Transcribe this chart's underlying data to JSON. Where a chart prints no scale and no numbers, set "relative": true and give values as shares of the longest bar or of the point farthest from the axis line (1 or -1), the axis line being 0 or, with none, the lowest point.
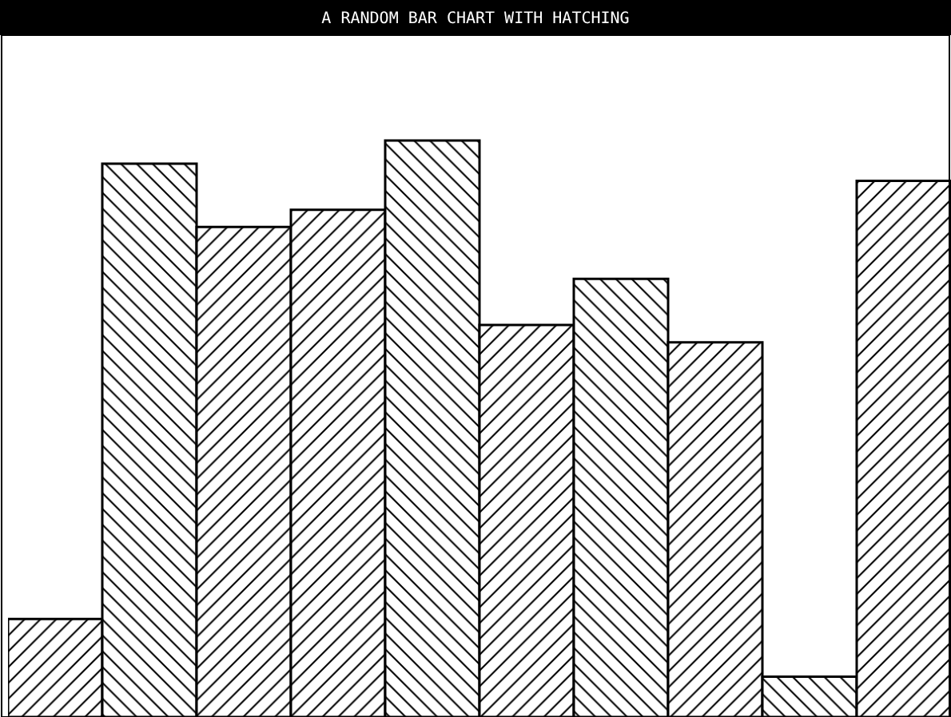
{
  "chart_data": {
    "type": "bar",
    "title": "A RANDOM BAR CHART WITH HATCHING",
    "relative": true,
    "categories": [
      null,
      null,
      null,
      null,
      null,
      null,
      null,
      null,
      null,
      null
    ],
    "series": [
      {
        "color": "#000000",
        "values": [
          0.17,
          0.96,
          0.85,
          0.88,
          1,
          0.68,
          0.76,
          0.65,
          0.07,
          0.93
        ]
      }
    ]
  }
}
